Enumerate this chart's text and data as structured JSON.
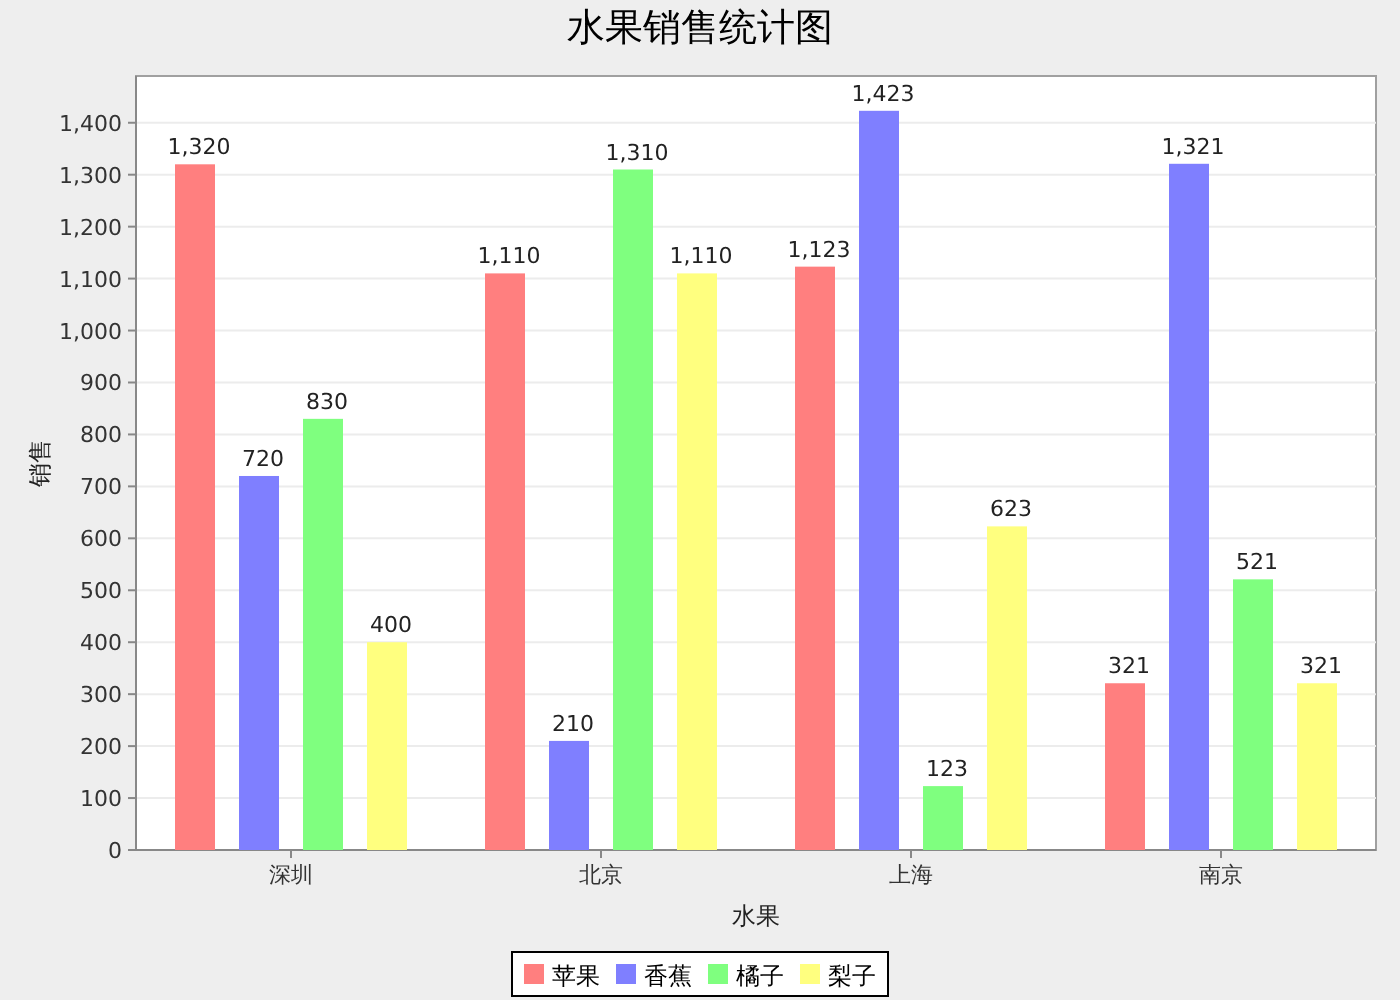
{
  "chart_data": {
    "type": "bar",
    "title": "水果销售统计图",
    "xlabel": "水果",
    "ylabel": "销售",
    "categories": [
      "深圳",
      "北京",
      "上海",
      "南京"
    ],
    "series": [
      {
        "name": "苹果",
        "color": "#ff7f7f",
        "values": [
          1320,
          1110,
          1123,
          321
        ],
        "value_labels": [
          "1,320",
          "1,110",
          "1,123",
          "321"
        ]
      },
      {
        "name": "香蕉",
        "color": "#7f7fff",
        "values": [
          720,
          210,
          1423,
          1321
        ],
        "value_labels": [
          "720",
          "210",
          "1,423",
          "1,321"
        ]
      },
      {
        "name": "橘子",
        "color": "#7fff7f",
        "values": [
          830,
          1310,
          123,
          521
        ],
        "value_labels": [
          "830",
          "1,310",
          "123",
          "521"
        ]
      },
      {
        "name": "梨子",
        "color": "#ffff7f",
        "values": [
          400,
          1110,
          623,
          321
        ],
        "value_labels": [
          "400",
          "1,110",
          "623",
          "321"
        ]
      }
    ],
    "ylim": [
      0,
      1490
    ],
    "yticks": [
      0,
      100,
      200,
      300,
      400,
      500,
      600,
      700,
      800,
      900,
      {
        "value": 1000,
        "label": "1,000"
      },
      {
        "value": 1100,
        "label": "1,100"
      },
      {
        "value": 1200,
        "label": "1,200"
      },
      {
        "value": 1300,
        "label": "1,300"
      },
      {
        "value": 1400,
        "label": "1,400"
      }
    ],
    "grid": "y",
    "legend": "bottom"
  }
}
